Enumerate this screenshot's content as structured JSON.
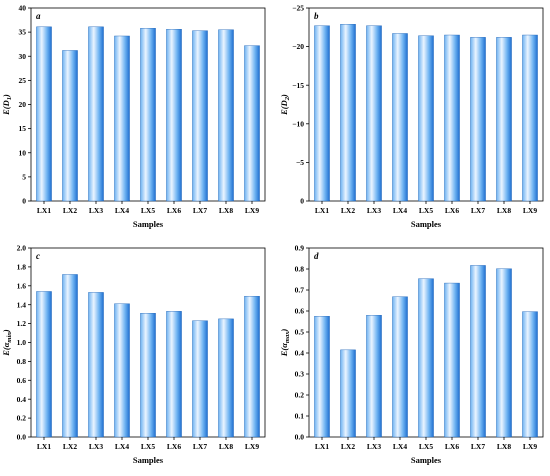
{
  "colors": {
    "bar_light": "#eaf4ff",
    "bar_mid": "#6fb3f2",
    "bar_dark": "#1f6fd0",
    "bar_edge": "#1a5fb4",
    "axis": "#000000"
  },
  "chart_data": [
    {
      "type": "bar",
      "panel_label": "a",
      "categories": [
        "LX1",
        "LX2",
        "LX3",
        "LX4",
        "LX5",
        "LX6",
        "LX7",
        "LX8",
        "LX9"
      ],
      "values": [
        36.1,
        31.2,
        36.1,
        34.2,
        35.8,
        35.6,
        35.3,
        35.5,
        32.2
      ],
      "xlabel": "Samples",
      "ylabel": "E(D₁)",
      "ylabel_main": "E(D",
      "ylabel_sub": "1",
      "ylabel_tail": ")",
      "ylim": [
        0,
        40
      ],
      "yticks": [
        0,
        5,
        10,
        15,
        20,
        25,
        30,
        35,
        40
      ],
      "ytick_labels": [
        "0",
        "5",
        "10",
        "15",
        "20",
        "25",
        "30",
        "35",
        "40"
      ],
      "grid": false
    },
    {
      "type": "bar",
      "panel_label": "b",
      "categories": [
        "LX1",
        "LX2",
        "LX3",
        "LX4",
        "LX5",
        "LX6",
        "LX7",
        "LX8",
        "LX9"
      ],
      "values": [
        -22.7,
        -22.9,
        -22.7,
        -21.7,
        -21.4,
        -21.5,
        -21.2,
        -21.2,
        -21.5
      ],
      "xlabel": "Samples",
      "ylabel": "E(D₂)",
      "ylabel_main": "E(D",
      "ylabel_sub": "2",
      "ylabel_tail": ")",
      "ylim": [
        0,
        -25
      ],
      "yticks": [
        0,
        -5,
        -10,
        -15,
        -20,
        -25
      ],
      "ytick_labels": [
        "0",
        "−5",
        "−10",
        "−15",
        "−20",
        "−25"
      ],
      "grid": false
    },
    {
      "type": "bar",
      "panel_label": "c",
      "categories": [
        "LX1",
        "LX2",
        "LX3",
        "LX4",
        "LX5",
        "LX6",
        "LX7",
        "LX8",
        "LX9"
      ],
      "values": [
        1.54,
        1.72,
        1.53,
        1.41,
        1.31,
        1.33,
        1.23,
        1.25,
        1.49
      ],
      "xlabel": "Samples",
      "ylabel": "E(αmin)",
      "ylabel_main": "E(α",
      "ylabel_sub": "min",
      "ylabel_tail": ")",
      "ylim": [
        0,
        2.0
      ],
      "yticks": [
        0,
        0.2,
        0.4,
        0.6,
        0.8,
        1.0,
        1.2,
        1.4,
        1.6,
        1.8,
        2.0
      ],
      "ytick_labels": [
        "0.0",
        "0.2",
        "0.4",
        "0.6",
        "0.8",
        "1.0",
        "1.2",
        "1.4",
        "1.6",
        "1.8",
        "2.0"
      ],
      "grid": false
    },
    {
      "type": "bar",
      "panel_label": "d",
      "categories": [
        "LX1",
        "LX2",
        "LX3",
        "LX4",
        "LX5",
        "LX6",
        "LX7",
        "LX8",
        "LX9"
      ],
      "values": [
        0.575,
        0.415,
        0.58,
        0.668,
        0.754,
        0.733,
        0.817,
        0.801,
        0.597
      ],
      "xlabel": "Samples",
      "ylabel": "E(αmax)",
      "ylabel_main": "E(α",
      "ylabel_sub": "max",
      "ylabel_tail": ")",
      "ylim": [
        0,
        0.9
      ],
      "yticks": [
        0,
        0.1,
        0.2,
        0.3,
        0.4,
        0.5,
        0.6,
        0.7,
        0.8,
        0.9
      ],
      "ytick_labels": [
        "0.0",
        "0.1",
        "0.2",
        "0.3",
        "0.4",
        "0.5",
        "0.6",
        "0.7",
        "0.8",
        "0.9"
      ],
      "grid": false
    }
  ]
}
